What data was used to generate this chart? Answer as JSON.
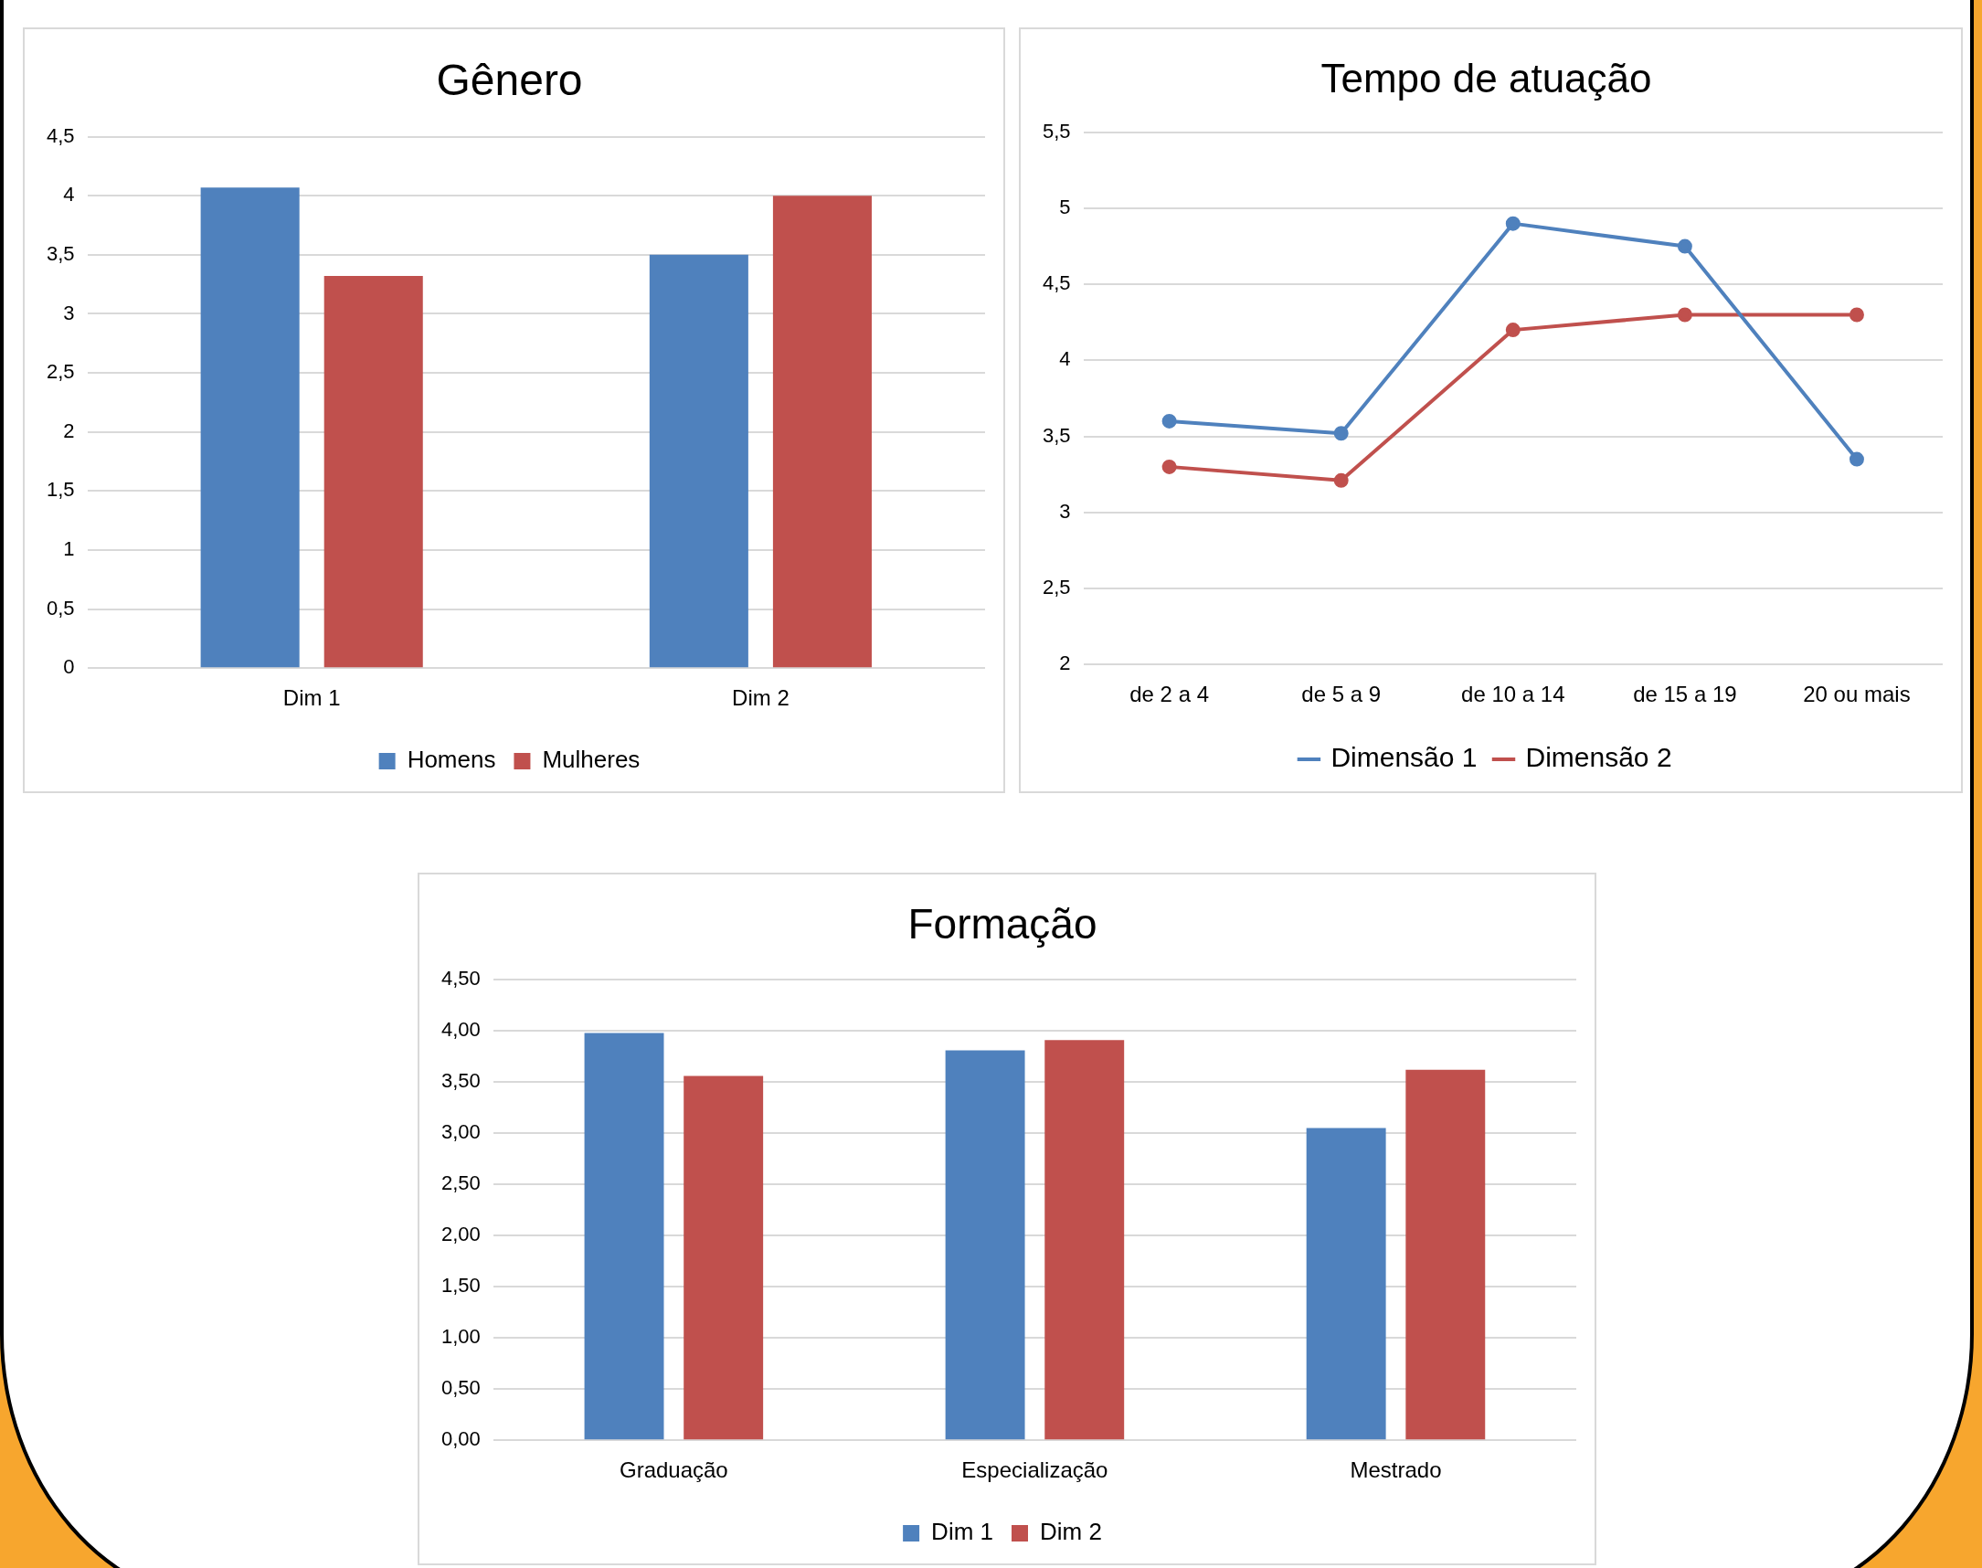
{
  "chart_data": [
    {
      "type": "bar",
      "title": "Gênero",
      "categories": [
        "Dim 1",
        "Dim 2"
      ],
      "series": [
        {
          "name": "Homens",
          "color": "#4f81bd",
          "values": [
            4.07,
            3.5
          ]
        },
        {
          "name": "Mulheres",
          "color": "#c0504d",
          "values": [
            3.32,
            4.0
          ]
        }
      ],
      "ylim": [
        0,
        4.5
      ],
      "yticks": [
        0,
        {
          "value": 0.5,
          "label": "0,5"
        },
        1,
        {
          "value": 1.5,
          "label": "1,5"
        },
        2,
        {
          "value": 2.5,
          "label": "2,5"
        },
        3,
        {
          "value": 3.5,
          "label": "3,5"
        },
        4,
        {
          "value": 4.5,
          "label": "4,5"
        }
      ],
      "grid": "y",
      "legend": "bottom"
    },
    {
      "type": "line",
      "title": "Tempo de atuação",
      "categories": [
        "de 2 a 4",
        "de 5 a 9",
        "de 10 a 14",
        "de 15 a 19",
        "20 ou mais"
      ],
      "series": [
        {
          "name": "Dimensão 1",
          "color": "#4f81bd",
          "values": [
            3.6,
            3.52,
            4.9,
            4.75,
            3.35
          ]
        },
        {
          "name": "Dimensão 2",
          "color": "#c0504d",
          "values": [
            3.3,
            3.21,
            4.2,
            4.3,
            4.3
          ]
        }
      ],
      "ylim": [
        2,
        5.5
      ],
      "yticks": [
        2,
        {
          "value": 2.5,
          "label": "2,5"
        },
        3,
        {
          "value": 3.5,
          "label": "3,5"
        },
        4,
        {
          "value": 4.5,
          "label": "4,5"
        },
        5,
        {
          "value": 5.5,
          "label": "5,5"
        }
      ],
      "grid": "y",
      "legend": "bottom",
      "marker": "circle",
      "line_style": "solid"
    },
    {
      "type": "bar",
      "title": "Formação",
      "categories": [
        "Graduação",
        "Especialização",
        "Mestrado"
      ],
      "series": [
        {
          "name": "Dim 1",
          "color": "#4f81bd",
          "values": [
            3.98,
            3.81,
            3.05
          ]
        },
        {
          "name": "Dim 2",
          "color": "#c0504d",
          "values": [
            3.56,
            3.91,
            3.62
          ]
        }
      ],
      "ylim": [
        0,
        4.5
      ],
      "yticks": [
        {
          "value": 0,
          "label": "0,00"
        },
        {
          "value": 0.5,
          "label": "0,50"
        },
        {
          "value": 1,
          "label": "1,00"
        },
        {
          "value": 1.5,
          "label": "1,50"
        },
        {
          "value": 2,
          "label": "2,00"
        },
        {
          "value": 2.5,
          "label": "2,50"
        },
        {
          "value": 3,
          "label": "3,00"
        },
        {
          "value": 3.5,
          "label": "3,50"
        },
        {
          "value": 4,
          "label": "4,00"
        },
        {
          "value": 4.5,
          "label": "4,50"
        }
      ],
      "grid": "y",
      "legend": "bottom"
    }
  ]
}
